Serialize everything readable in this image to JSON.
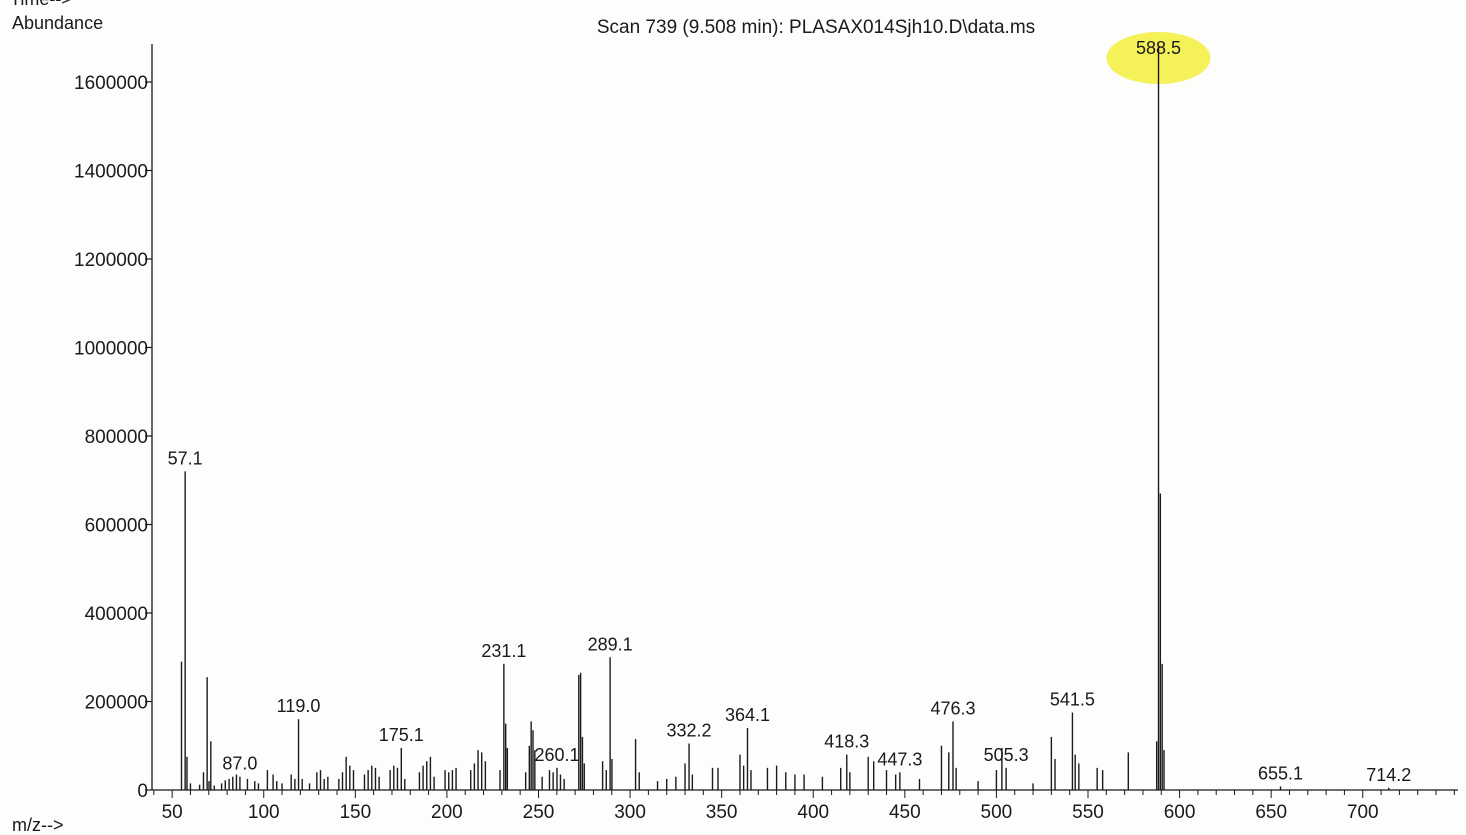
{
  "chart_data": {
    "type": "bar",
    "title": "Scan 739 (9.508 min): PLASAX014Sjh10.D\\data.ms",
    "corner_label": "Time-->",
    "ylabel": "Abundance",
    "xlabel": "m/z-->",
    "xlim": [
      39,
      752
    ],
    "ylim": [
      0,
      1600000
    ],
    "x_ticks": [
      50,
      100,
      150,
      200,
      250,
      300,
      350,
      400,
      450,
      500,
      550,
      600,
      650,
      700
    ],
    "y_ticks": [
      0,
      200000,
      400000,
      600000,
      800000,
      1000000,
      1200000,
      1400000,
      1600000
    ],
    "highlight": {
      "mz": 588.5,
      "color": "#f2ee3c"
    },
    "bar_color": "#1a1a1a",
    "grid": false,
    "legend": "none",
    "peaks": [
      [
        55.1,
        290000
      ],
      [
        57.1,
        720000
      ],
      [
        58.1,
        75000
      ],
      [
        60,
        15000
      ],
      [
        65,
        12000
      ],
      [
        67.1,
        40000
      ],
      [
        69.1,
        255000
      ],
      [
        70.1,
        20000
      ],
      [
        71.1,
        110000
      ],
      [
        73,
        10000
      ],
      [
        77,
        15000
      ],
      [
        79,
        22000
      ],
      [
        81.1,
        25000
      ],
      [
        83.1,
        30000
      ],
      [
        85.1,
        35000
      ],
      [
        87.0,
        30000
      ],
      [
        91.1,
        25000
      ],
      [
        95.1,
        20000
      ],
      [
        97.1,
        15000
      ],
      [
        102,
        45000
      ],
      [
        105.1,
        35000
      ],
      [
        107.1,
        20000
      ],
      [
        110,
        15000
      ],
      [
        115,
        35000
      ],
      [
        117,
        25000
      ],
      [
        119.0,
        160000
      ],
      [
        121,
        25000
      ],
      [
        125,
        15000
      ],
      [
        129,
        40000
      ],
      [
        131,
        45000
      ],
      [
        133,
        25000
      ],
      [
        135,
        30000
      ],
      [
        141,
        25000
      ],
      [
        143,
        40000
      ],
      [
        145,
        75000
      ],
      [
        147,
        55000
      ],
      [
        149,
        45000
      ],
      [
        155,
        35000
      ],
      [
        157,
        45000
      ],
      [
        159,
        55000
      ],
      [
        161,
        50000
      ],
      [
        163,
        30000
      ],
      [
        169,
        45000
      ],
      [
        171,
        55000
      ],
      [
        173,
        50000
      ],
      [
        175.1,
        95000
      ],
      [
        177,
        25000
      ],
      [
        185,
        40000
      ],
      [
        187,
        55000
      ],
      [
        189,
        65000
      ],
      [
        191,
        75000
      ],
      [
        193,
        30000
      ],
      [
        199,
        45000
      ],
      [
        201,
        40000
      ],
      [
        203,
        45000
      ],
      [
        205,
        50000
      ],
      [
        213,
        45000
      ],
      [
        215,
        60000
      ],
      [
        217,
        90000
      ],
      [
        219,
        85000
      ],
      [
        221,
        65000
      ],
      [
        229,
        45000
      ],
      [
        231.1,
        285000
      ],
      [
        232.1,
        150000
      ],
      [
        233,
        95000
      ],
      [
        243,
        40000
      ],
      [
        245,
        100000
      ],
      [
        246,
        155000
      ],
      [
        247,
        135000
      ],
      [
        248,
        90000
      ],
      [
        252,
        30000
      ],
      [
        256,
        45000
      ],
      [
        258,
        40000
      ],
      [
        260.1,
        50000
      ],
      [
        262,
        35000
      ],
      [
        264,
        25000
      ],
      [
        272,
        260000
      ],
      [
        273,
        265000
      ],
      [
        274,
        120000
      ],
      [
        275,
        60000
      ],
      [
        285,
        65000
      ],
      [
        287,
        45000
      ],
      [
        289.1,
        300000
      ],
      [
        290.1,
        70000
      ],
      [
        303,
        115000
      ],
      [
        305,
        40000
      ],
      [
        315,
        20000
      ],
      [
        320,
        25000
      ],
      [
        325,
        30000
      ],
      [
        330,
        60000
      ],
      [
        332.2,
        105000
      ],
      [
        334,
        35000
      ],
      [
        345,
        50000
      ],
      [
        348,
        50000
      ],
      [
        360,
        80000
      ],
      [
        362,
        55000
      ],
      [
        364.1,
        140000
      ],
      [
        366,
        45000
      ],
      [
        375,
        50000
      ],
      [
        380,
        55000
      ],
      [
        385,
        40000
      ],
      [
        390,
        35000
      ],
      [
        395,
        35000
      ],
      [
        405,
        30000
      ],
      [
        415,
        50000
      ],
      [
        418.3,
        80000
      ],
      [
        420,
        40000
      ],
      [
        430,
        75000
      ],
      [
        433,
        65000
      ],
      [
        440,
        45000
      ],
      [
        445,
        35000
      ],
      [
        447.3,
        40000
      ],
      [
        458,
        25000
      ],
      [
        470,
        100000
      ],
      [
        474,
        85000
      ],
      [
        476.3,
        155000
      ],
      [
        478,
        50000
      ],
      [
        490,
        20000
      ],
      [
        500,
        45000
      ],
      [
        503,
        95000
      ],
      [
        505.3,
        50000
      ],
      [
        520,
        15000
      ],
      [
        530,
        120000
      ],
      [
        532,
        70000
      ],
      [
        541.5,
        175000
      ],
      [
        543,
        80000
      ],
      [
        545,
        60000
      ],
      [
        555,
        50000
      ],
      [
        558,
        45000
      ],
      [
        572,
        85000
      ],
      [
        587.5,
        110000
      ],
      [
        588.5,
        1680000
      ],
      [
        589.5,
        670000
      ],
      [
        590.5,
        285000
      ],
      [
        591.5,
        90000
      ],
      [
        655.1,
        8000
      ],
      [
        714.2,
        5000
      ]
    ],
    "annotations": [
      {
        "mz": 57.1,
        "text": "57.1"
      },
      {
        "mz": 87.0,
        "text": "87.0"
      },
      {
        "mz": 119.0,
        "text": "119.0"
      },
      {
        "mz": 175.1,
        "text": "175.1"
      },
      {
        "mz": 231.1,
        "text": "231.1"
      },
      {
        "mz": 260.1,
        "text": "260.1"
      },
      {
        "mz": 289.1,
        "text": "289.1"
      },
      {
        "mz": 332.2,
        "text": "332.2"
      },
      {
        "mz": 364.1,
        "text": "364.1"
      },
      {
        "mz": 418.3,
        "text": "418.3"
      },
      {
        "mz": 447.3,
        "text": "447.3"
      },
      {
        "mz": 476.3,
        "text": "476.3"
      },
      {
        "mz": 505.3,
        "text": "505.3"
      },
      {
        "mz": 541.5,
        "text": "541.5"
      },
      {
        "mz": 588.5,
        "text": "588.5"
      },
      {
        "mz": 655.1,
        "text": "655.1"
      },
      {
        "mz": 714.2,
        "text": "714.2"
      }
    ]
  }
}
